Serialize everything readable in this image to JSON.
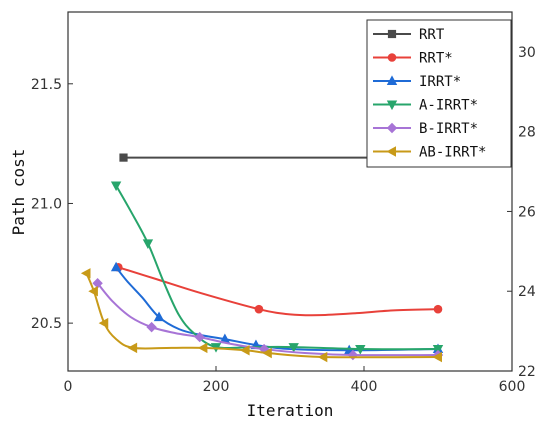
{
  "chart_data": {
    "type": "line",
    "title": "",
    "xlabel": "Iteration",
    "ylabel": "Path cost",
    "xlim": [
      0,
      600
    ],
    "ylim_left": [
      20.3,
      21.8
    ],
    "ylim_right": [
      22,
      31
    ],
    "x_ticks": [
      0,
      200,
      400,
      600
    ],
    "y_ticks_left": [
      20.5,
      21.0,
      21.5
    ],
    "y_ticks_right": [
      22,
      24,
      26,
      28,
      30
    ],
    "grid": false,
    "legend_position": "top-right",
    "series": [
      {
        "name": "RRT",
        "color": "#4a4a4a",
        "marker": "square",
        "axis": "right",
        "points": [
          [
            75,
            27.35
          ],
          [
            500,
            27.35
          ]
        ],
        "curve": [
          [
            75,
            27.35
          ],
          [
            500,
            27.35
          ]
        ]
      },
      {
        "name": "RRT*",
        "color": "#e8413a",
        "marker": "circle",
        "axis": "right",
        "points": [
          [
            68,
            24.6
          ],
          [
            258,
            23.55
          ],
          [
            500,
            23.55
          ]
        ],
        "curve": [
          [
            68,
            24.6
          ],
          [
            120,
            24.3
          ],
          [
            180,
            23.95
          ],
          [
            258,
            23.55
          ],
          [
            300,
            23.42
          ],
          [
            340,
            23.4
          ],
          [
            390,
            23.45
          ],
          [
            440,
            23.52
          ],
          [
            500,
            23.55
          ]
        ]
      },
      {
        "name": "IRRT*",
        "color": "#1f6bd6",
        "marker": "triangle-up",
        "axis": "right",
        "points": [
          [
            65,
            24.6
          ],
          [
            123,
            23.35
          ],
          [
            212,
            22.8
          ],
          [
            254,
            22.65
          ],
          [
            380,
            22.52
          ],
          [
            500,
            22.55
          ]
        ],
        "curve": [
          [
            65,
            24.6
          ],
          [
            80,
            24.25
          ],
          [
            100,
            23.85
          ],
          [
            123,
            23.35
          ],
          [
            150,
            23.05
          ],
          [
            180,
            22.9
          ],
          [
            212,
            22.8
          ],
          [
            254,
            22.65
          ],
          [
            300,
            22.55
          ],
          [
            380,
            22.52
          ],
          [
            500,
            22.55
          ]
        ]
      },
      {
        "name": "A-IRRT*",
        "color": "#27a56b",
        "marker": "triangle-down",
        "axis": "right",
        "points": [
          [
            65,
            26.65
          ],
          [
            108,
            25.2
          ],
          [
            200,
            22.6
          ],
          [
            305,
            22.6
          ],
          [
            395,
            22.55
          ],
          [
            500,
            22.55
          ]
        ],
        "curve": [
          [
            65,
            26.65
          ],
          [
            85,
            26.0
          ],
          [
            108,
            25.2
          ],
          [
            130,
            24.2
          ],
          [
            150,
            23.4
          ],
          [
            170,
            22.95
          ],
          [
            200,
            22.6
          ],
          [
            250,
            22.6
          ],
          [
            305,
            22.6
          ],
          [
            395,
            22.55
          ],
          [
            500,
            22.55
          ]
        ]
      },
      {
        "name": "B-IRRT*",
        "color": "#a774d6",
        "marker": "diamond",
        "axis": "right",
        "points": [
          [
            40,
            24.2
          ],
          [
            113,
            23.1
          ],
          [
            178,
            22.85
          ],
          [
            265,
            22.55
          ],
          [
            385,
            22.4
          ],
          [
            500,
            22.4
          ]
        ],
        "curve": [
          [
            40,
            24.2
          ],
          [
            60,
            23.75
          ],
          [
            85,
            23.35
          ],
          [
            113,
            23.1
          ],
          [
            145,
            22.95
          ],
          [
            178,
            22.85
          ],
          [
            220,
            22.68
          ],
          [
            265,
            22.55
          ],
          [
            320,
            22.45
          ],
          [
            385,
            22.4
          ],
          [
            500,
            22.4
          ]
        ]
      },
      {
        "name": "AB-IRRT*",
        "color": "#c89a18",
        "marker": "triangle-left",
        "axis": "right",
        "points": [
          [
            25,
            24.45
          ],
          [
            35,
            24.0
          ],
          [
            49,
            23.2
          ],
          [
            88,
            22.58
          ],
          [
            183,
            22.58
          ],
          [
            240,
            22.52
          ],
          [
            270,
            22.45
          ],
          [
            345,
            22.35
          ],
          [
            500,
            22.35
          ]
        ],
        "curve": [
          [
            25,
            24.45
          ],
          [
            35,
            24.0
          ],
          [
            49,
            23.2
          ],
          [
            65,
            22.8
          ],
          [
            88,
            22.58
          ],
          [
            140,
            22.58
          ],
          [
            183,
            22.58
          ],
          [
            240,
            22.52
          ],
          [
            270,
            22.45
          ],
          [
            345,
            22.35
          ],
          [
            500,
            22.35
          ]
        ]
      }
    ]
  }
}
